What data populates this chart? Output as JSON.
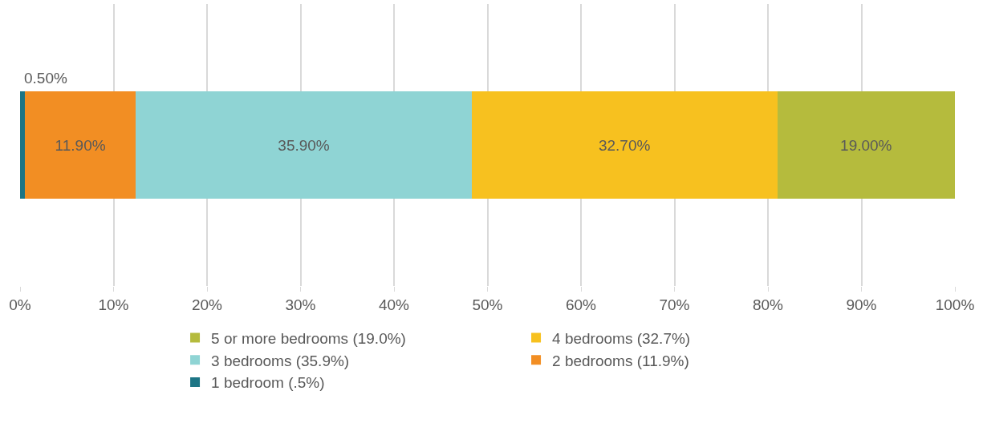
{
  "chart_data": {
    "type": "bar",
    "orientation": "horizontal",
    "stacked": true,
    "categories": [
      null
    ],
    "series": [
      {
        "name": "1 bedroom (.5%)",
        "color": "#1d7585",
        "values": [
          0.5
        ],
        "value_labels": [
          "0.50%"
        ]
      },
      {
        "name": "2 bedrooms (11.9%)",
        "color": "#f28e23",
        "values": [
          11.9
        ],
        "value_labels": [
          "11.90%"
        ]
      },
      {
        "name": "3 bedrooms (35.9%)",
        "color": "#8fd4d4",
        "values": [
          35.9
        ],
        "value_labels": [
          "35.90%"
        ]
      },
      {
        "name": "4 bedrooms (32.7%)",
        "color": "#f7c11f",
        "values": [
          32.7
        ],
        "value_labels": [
          "32.70%"
        ]
      },
      {
        "name": "5 or more bedrooms (19.0%)",
        "color": "#b5bb3d",
        "values": [
          19.0
        ],
        "value_labels": [
          "19.00%"
        ]
      }
    ],
    "xlim": [
      0,
      100
    ],
    "xticks": [
      {
        "value": 0,
        "label": "0%"
      },
      {
        "value": 10,
        "label": "10%"
      },
      {
        "value": 20,
        "label": "20%"
      },
      {
        "value": 30,
        "label": "30%"
      },
      {
        "value": 40,
        "label": "40%"
      },
      {
        "value": 50,
        "label": "50%"
      },
      {
        "value": 60,
        "label": "60%"
      },
      {
        "value": 70,
        "label": "70%"
      },
      {
        "value": 80,
        "label": "80%"
      },
      {
        "value": 90,
        "label": "90%"
      },
      {
        "value": 100,
        "label": "100%"
      }
    ],
    "grid": "x",
    "legend": "bottom"
  }
}
